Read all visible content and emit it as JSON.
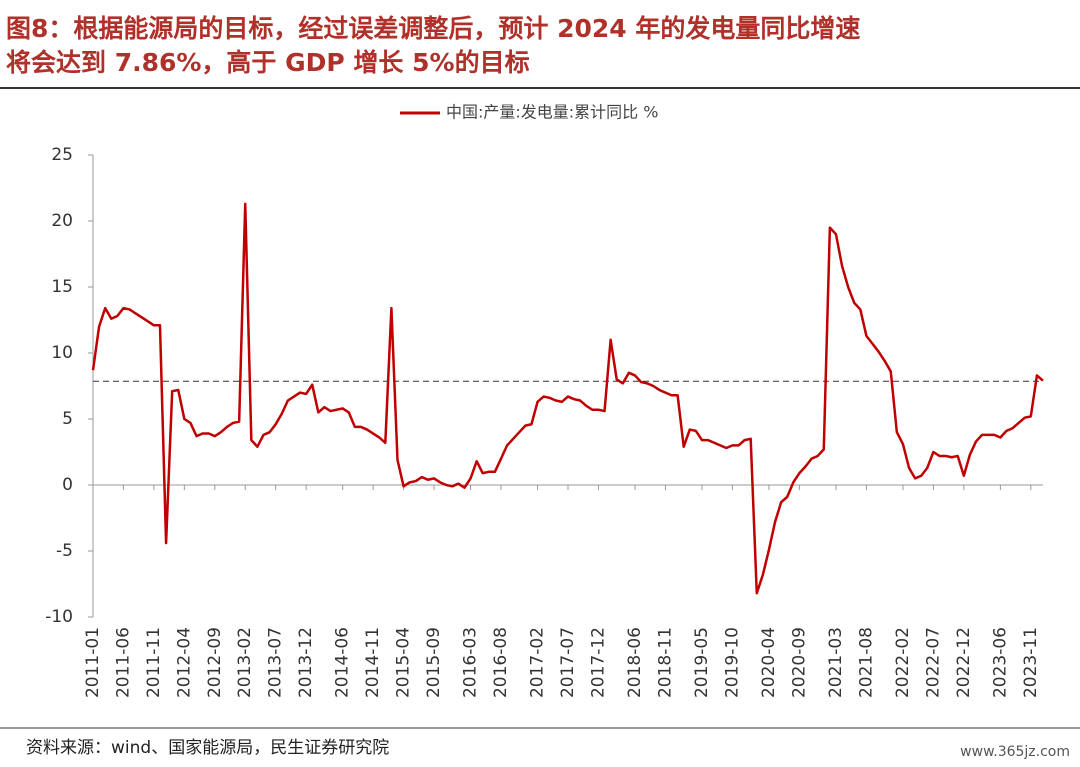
{
  "chart_data": {
    "type": "line",
    "title_lines": [
      "图8：根据能源局的目标，经过误差调整后，预计 2024 年的发电量同比增速",
      "将会达到 7.86%，高于 GDP 增长 5%的目标"
    ],
    "reference_line": 7.86,
    "source": "资料来源：wind、国家能源局，民生证券研究院",
    "watermark": "www.365jz.com",
    "categories": [
      "2011-01",
      null,
      null,
      null,
      null,
      "2011-06",
      null,
      null,
      null,
      null,
      "2011-11",
      null,
      null,
      null,
      null,
      "2012-04",
      null,
      null,
      null,
      null,
      "2012-09",
      null,
      null,
      null,
      null,
      "2013-02",
      null,
      null,
      null,
      null,
      "2013-07",
      null,
      null,
      null,
      null,
      "2013-12",
      null,
      null,
      null,
      null,
      null,
      "2014-06",
      null,
      null,
      null,
      null,
      "2014-11",
      null,
      null,
      null,
      null,
      "2015-04",
      null,
      null,
      null,
      null,
      "2015-09",
      null,
      null,
      null,
      null,
      null,
      "2016-03",
      null,
      null,
      null,
      null,
      "2016-08",
      null,
      null,
      null,
      null,
      null,
      "2017-02",
      null,
      null,
      null,
      null,
      "2017-07",
      null,
      null,
      null,
      null,
      "2017-12",
      null,
      null,
      null,
      null,
      null,
      "2018-06",
      null,
      null,
      null,
      null,
      "2018-11",
      null,
      null,
      null,
      null,
      null,
      "2019-05",
      null,
      null,
      null,
      null,
      "2019-10",
      null,
      null,
      null,
      null,
      null,
      "2020-04",
      null,
      null,
      null,
      null,
      "2020-09",
      null,
      null,
      null,
      null,
      null,
      "2021-03",
      null,
      null,
      null,
      null,
      "2021-08",
      null,
      null,
      null,
      null,
      null,
      "2022-02",
      null,
      null,
      null,
      null,
      "2022-07",
      null,
      null,
      null,
      null,
      "2022-12",
      null,
      null,
      null,
      null,
      null,
      "2023-06",
      null,
      null,
      null,
      null,
      "2023-11",
      null,
      null
    ],
    "series": [
      {
        "name": "中国:产量:发电量:累计同比 %",
        "color": "#c00000",
        "values": [
          8.7,
          12.0,
          13.4,
          12.6,
          12.8,
          13.4,
          13.3,
          13.0,
          12.7,
          12.4,
          12.1,
          12.1,
          -4.4,
          7.1,
          7.2,
          5.0,
          4.7,
          3.7,
          3.9,
          3.9,
          3.7,
          4.0,
          4.4,
          4.7,
          4.8,
          21.3,
          3.4,
          2.9,
          3.8,
          4.0,
          4.6,
          5.4,
          6.4,
          6.7,
          7.0,
          6.9,
          7.6,
          5.5,
          5.9,
          5.6,
          5.7,
          5.8,
          5.5,
          4.4,
          4.4,
          4.2,
          3.9,
          3.6,
          3.2,
          13.4,
          1.9,
          -0.1,
          0.2,
          0.3,
          0.6,
          0.4,
          0.5,
          0.2,
          0.0,
          -0.1,
          0.1,
          -0.2,
          0.5,
          1.8,
          0.9,
          1.0,
          1.0,
          2.0,
          3.0,
          3.5,
          4.0,
          4.5,
          4.6,
          6.3,
          6.7,
          6.6,
          6.4,
          6.3,
          6.7,
          6.5,
          6.4,
          6.0,
          5.7,
          5.7,
          5.6,
          11.0,
          8.0,
          7.7,
          8.5,
          8.3,
          7.8,
          7.7,
          7.5,
          7.2,
          7.0,
          6.8,
          6.8,
          2.9,
          4.2,
          4.1,
          3.4,
          3.4,
          3.2,
          3.0,
          2.8,
          3.0,
          3.0,
          3.4,
          3.5,
          -8.2,
          -6.8,
          -4.9,
          -2.8,
          -1.3,
          -0.9,
          0.2,
          0.9,
          1.4,
          2.0,
          2.2,
          2.7,
          19.5,
          19.0,
          16.6,
          15.0,
          13.8,
          13.3,
          11.3,
          10.7,
          10.1,
          9.4,
          8.6,
          4.0,
          3.1,
          1.3,
          0.5,
          0.7,
          1.3,
          2.5,
          2.2,
          2.2,
          2.1,
          2.2,
          0.7,
          2.3,
          3.3,
          3.8,
          3.8,
          3.8,
          3.6,
          4.1,
          4.3,
          4.7,
          5.1,
          5.2,
          8.3,
          7.9
        ]
      }
    ],
    "ylim": [
      -10,
      25
    ],
    "yticks": [
      -10,
      -5,
      0,
      5,
      10,
      15,
      20,
      25
    ]
  }
}
